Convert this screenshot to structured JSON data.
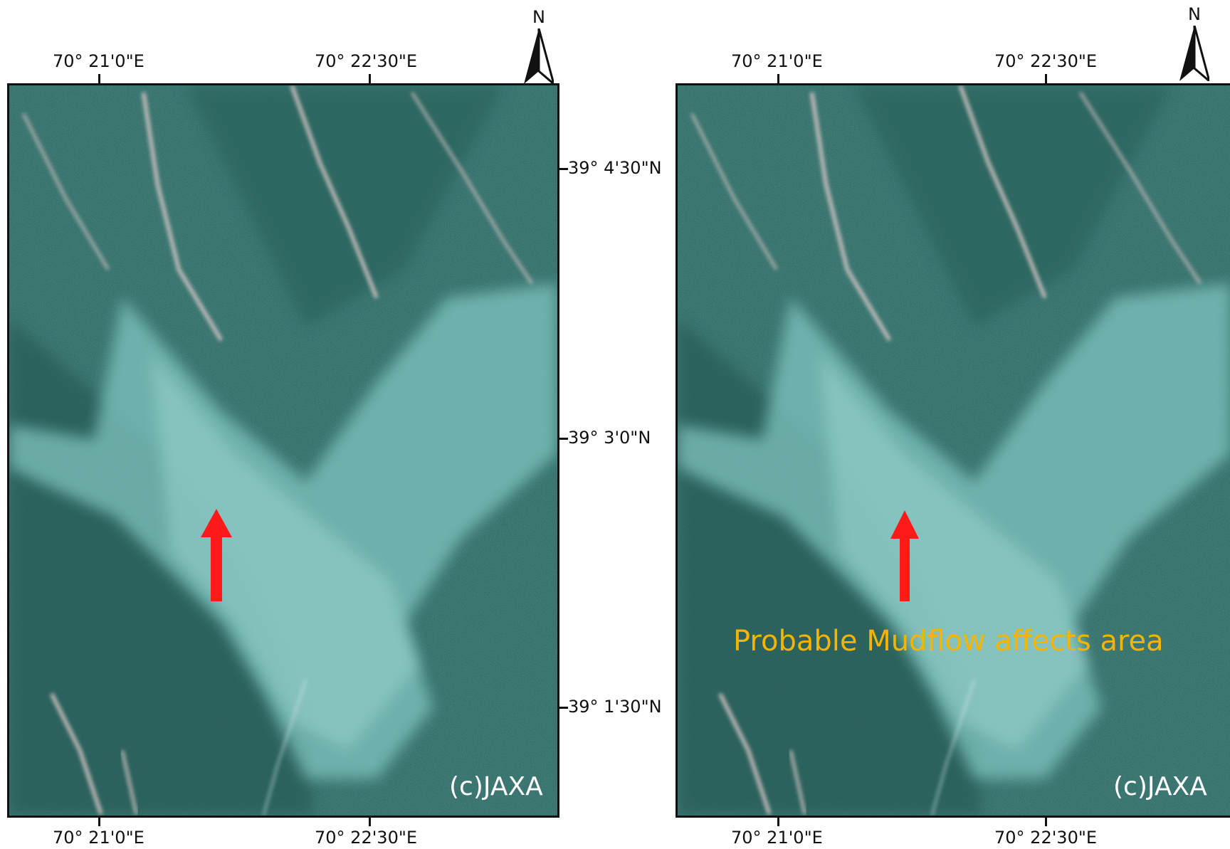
{
  "north_label": "N",
  "longitude_labels": [
    "70° 21'0\"E",
    "70° 22'30\"E"
  ],
  "latitude_labels": [
    "39° 4'30\"N",
    "39° 3'0\"N",
    "39° 1'30\"N"
  ],
  "credit": "(c)JAXA",
  "annotation": "Probable Mudflow affects area",
  "colors": {
    "frame": "#111111",
    "terrain_dark": "#2f6b66",
    "terrain_light": "#7fc4c0",
    "arrow": "#ff1a1a",
    "annotation": "#f5b400",
    "credit": "#ffffff"
  }
}
